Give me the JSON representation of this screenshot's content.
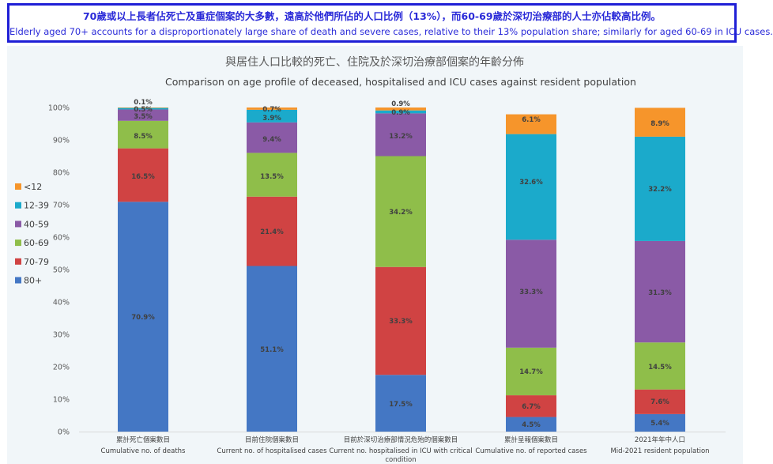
{
  "banner": {
    "zh": "70歲或以上長者佔死亡及重症個案的大多數，遠高於他們所佔的人口比例（13%），而60-69歲於深切治療部的人士亦佔較高比例。",
    "en": "Elderly aged 70+ accounts for a disproportionately large share of death and severe cases, relative to their 13% population share; similarly for aged 60-69 in ICU cases."
  },
  "chart_data": {
    "type": "bar",
    "stacked": true,
    "title": "與居住人口比較的死亡、住院及於深切治療部個案的年齡分佈",
    "subtitle": "Comparison on age profile of deceased, hospitalised and ICU cases against resident population",
    "categories": [
      {
        "zh": "累計死亡個案數目",
        "en": [
          "Cumulative no. of deaths"
        ]
      },
      {
        "zh": "目前住院個案數目",
        "en": [
          "Current no. of hospitalised cases"
        ]
      },
      {
        "zh": "目前於深切治療部情況危殆的個案數目",
        "en": [
          "Current no. hospitalised in ICU with critical",
          "condition"
        ]
      },
      {
        "zh": "累計呈報個案數目",
        "en": [
          "Cumulative no. of reported cases"
        ]
      },
      {
        "zh": "2021年年中人口",
        "en": [
          "Mid-2021 resident population"
        ]
      }
    ],
    "series": [
      {
        "name": "80+",
        "color": "#4477c4",
        "values": [
          70.9,
          51.1,
          17.5,
          4.5,
          5.4
        ]
      },
      {
        "name": "70-79",
        "color": "#d04343",
        "values": [
          16.5,
          21.4,
          33.3,
          6.7,
          7.6
        ]
      },
      {
        "name": "60-69",
        "color": "#8fbe4a",
        "values": [
          8.5,
          13.5,
          34.2,
          14.7,
          14.5
        ]
      },
      {
        "name": "40-59",
        "color": "#8a5aa6",
        "values": [
          3.5,
          9.4,
          13.2,
          33.3,
          31.3
        ]
      },
      {
        "name": "12-39",
        "color": "#1baacb",
        "values": [
          0.5,
          3.9,
          0.9,
          32.6,
          32.2
        ]
      },
      {
        "name": "<12",
        "color": "#f6952b",
        "values": [
          0.1,
          0.7,
          0.9,
          6.1,
          8.9
        ]
      }
    ],
    "labels": [
      [
        "70.9%",
        "16.5%",
        "8.5%",
        "3.5%",
        "0.5%",
        "0.1%"
      ],
      [
        "51.1%",
        "21.4%",
        "13.5%",
        "9.4%",
        "3.9%",
        "0.7%"
      ],
      [
        "17.5%",
        "33.3%",
        "34.2%",
        "13.2%",
        "0.9%",
        "0.9%"
      ],
      [
        "4.5%",
        "6.7%",
        "14.7%",
        "33.3%",
        "32.6%",
        "6.1%"
      ],
      [
        "5.4%",
        "7.6%",
        "14.5%",
        "31.3%",
        "32.2%",
        "8.9%"
      ]
    ],
    "yticks": [
      "0%",
      "10%",
      "20%",
      "30%",
      "40%",
      "50%",
      "60%",
      "70%",
      "80%",
      "90%",
      "100%"
    ],
    "ylim": [
      0,
      100
    ],
    "legend": {
      "placement": "left",
      "order": [
        "<12",
        "12-39",
        "40-59",
        "60-69",
        "70-79",
        "80+"
      ]
    },
    "grid": false
  }
}
